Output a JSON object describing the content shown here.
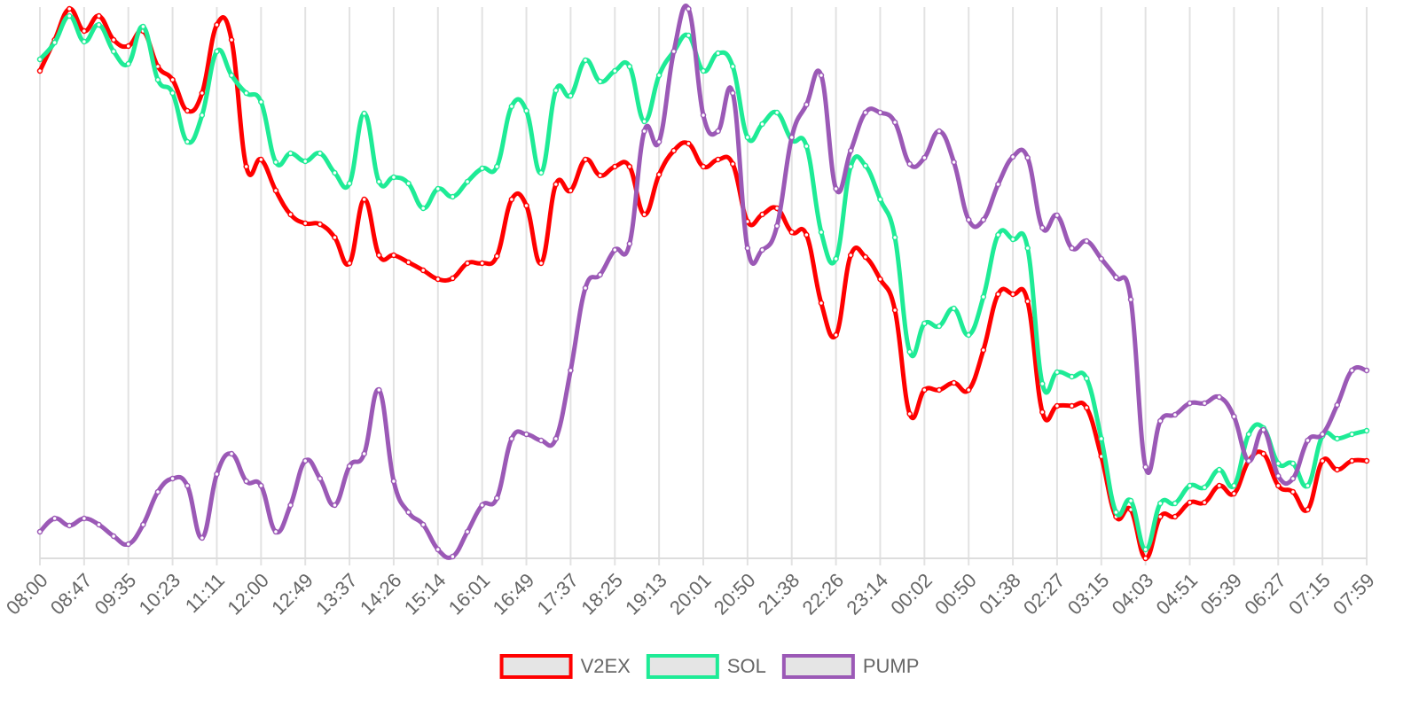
{
  "chart_data": {
    "type": "line",
    "categories": [
      "08:00",
      null,
      null,
      "08:47",
      null,
      null,
      "09:35",
      null,
      null,
      "10:23",
      null,
      null,
      "11:11",
      null,
      null,
      "12:00",
      null,
      null,
      "12:49",
      null,
      null,
      "13:37",
      null,
      null,
      "14:26",
      null,
      null,
      "15:14",
      null,
      null,
      "16:01",
      null,
      null,
      "16:49",
      null,
      null,
      "17:37",
      null,
      null,
      "18:25",
      null,
      null,
      "19:13",
      null,
      null,
      "20:01",
      null,
      null,
      "20:50",
      null,
      null,
      "21:38",
      null,
      null,
      "22:26",
      null,
      null,
      "23:14",
      null,
      null,
      "00:02",
      null,
      null,
      "00:50",
      null,
      null,
      "01:38",
      null,
      null,
      "02:27",
      null,
      null,
      "03:15",
      null,
      null,
      "04:03",
      null,
      null,
      "04:51",
      null,
      null,
      "05:39",
      null,
      null,
      "06:27",
      null,
      null,
      "07:15",
      null,
      null,
      "07:59"
    ],
    "series": [
      {
        "name": "V2EX",
        "color": "#ff0000",
        "values": [
          550,
          585,
          620,
          595,
          612,
          585,
          578,
          595,
          555,
          540,
          505,
          525,
          602,
          585,
          442,
          450,
          415,
          388,
          378,
          377,
          362,
          333,
          405,
          342,
          342,
          334,
          325,
          315,
          316,
          333,
          333,
          341,
          405,
          398,
          333,
          422,
          415,
          450,
          432,
          442,
          442,
          388,
          433,
          460,
          468,
          442,
          450,
          445,
          380,
          388,
          395,
          368,
          365,
          288,
          252,
          342,
          340,
          315,
          280,
          163,
          190,
          190,
          198,
          190,
          235,
          298,
          298,
          290,
          165,
          172,
          172,
          170,
          115,
          47,
          55,
          0,
          47,
          47,
          63,
          63,
          82,
          73,
          110,
          118,
          82,
          75,
          55,
          110,
          100,
          110,
          110
        ]
      },
      {
        "name": "SOL",
        "color": "#1eeb96",
        "values": [
          563,
          582,
          612,
          583,
          602,
          572,
          558,
          600,
          540,
          525,
          470,
          500,
          572,
          545,
          525,
          515,
          447,
          457,
          448,
          457,
          435,
          423,
          502,
          425,
          430,
          423,
          395,
          417,
          408,
          425,
          440,
          442,
          510,
          505,
          435,
          528,
          522,
          562,
          538,
          550,
          555,
          493,
          545,
          572,
          590,
          550,
          570,
          555,
          475,
          490,
          503,
          472,
          465,
          368,
          338,
          442,
          443,
          405,
          362,
          233,
          265,
          262,
          282,
          252,
          295,
          365,
          360,
          350,
          197,
          210,
          205,
          203,
          135,
          52,
          65,
          10,
          62,
          62,
          82,
          80,
          100,
          82,
          140,
          147,
          107,
          107,
          82,
          138,
          135,
          140,
          144
        ]
      },
      {
        "name": "PUMP",
        "color": "#9b59b6",
        "values": [
          30,
          45,
          37,
          45,
          38,
          25,
          16,
          38,
          75,
          90,
          82,
          23,
          95,
          118,
          87,
          82,
          30,
          60,
          110,
          90,
          60,
          104,
          118,
          190,
          87,
          52,
          38,
          10,
          2,
          30,
          60,
          68,
          135,
          140,
          133,
          135,
          212,
          305,
          320,
          348,
          355,
          482,
          470,
          572,
          620,
          500,
          482,
          525,
          350,
          348,
          375,
          475,
          512,
          545,
          417,
          460,
          503,
          503,
          492,
          445,
          452,
          482,
          447,
          382,
          382,
          422,
          453,
          452,
          373,
          387,
          350,
          358,
          338,
          317,
          292,
          103,
          155,
          162,
          175,
          175,
          182,
          160,
          110,
          145,
          93,
          90,
          133,
          140,
          173,
          212,
          212
        ]
      }
    ],
    "ylim": [
      0,
      622
    ],
    "grid": true,
    "legend": "bottom"
  }
}
